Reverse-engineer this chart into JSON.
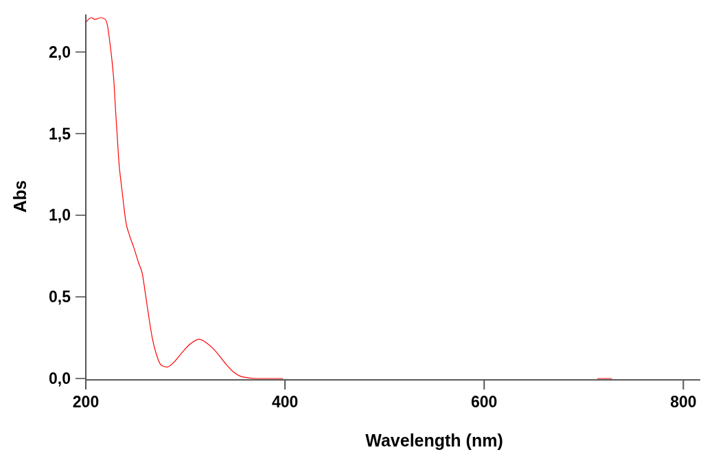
{
  "chart_data": {
    "type": "line",
    "xlabel": "Wavelength (nm)",
    "ylabel": "Abs",
    "xlim": [
      200,
      817
    ],
    "ylim": [
      0,
      2.23
    ],
    "xticks": [
      200,
      400,
      600,
      800
    ],
    "yticks": [
      {
        "value": 0,
        "label": "0,0"
      },
      {
        "value": 0.5,
        "label": "0,5"
      },
      {
        "value": 1,
        "label": "1,0"
      },
      {
        "value": 1.5,
        "label": "1,5"
      },
      {
        "value": 2,
        "label": "2,0"
      }
    ],
    "grid": false,
    "marker": "none",
    "line_style": "solid",
    "series": [
      {
        "color": "#ff0000",
        "x": [
          200,
          205.3,
          209.2,
          215,
          219.5,
          221.8,
          224.1,
          226.4,
          228.3,
          229.9,
          231.5,
          233.3,
          235.6,
          237.9,
          240.2,
          243.7,
          248.3,
          252.9,
          256.8,
          259.8,
          263.2,
          266.7,
          271.3,
          275.9,
          281.6,
          288.5,
          295.4,
          304.6,
          313.8,
          320.7,
          329.9,
          339.1,
          348.3,
          357.4,
          371.2,
          387.4,
          397.7,
          560,
          714,
          728
        ],
        "values": [
          2.18,
          2.21,
          2.2,
          2.21,
          2.2,
          2.16,
          2.06,
          1.94,
          1.81,
          1.64,
          1.49,
          1.32,
          1.19,
          1.07,
          0.96,
          0.88,
          0.8,
          0.71,
          0.64,
          0.52,
          0.38,
          0.25,
          0.14,
          0.08,
          0.07,
          0.1,
          0.15,
          0.21,
          0.24,
          0.22,
          0.17,
          0.1,
          0.04,
          0.01,
          0,
          0,
          0,
          null,
          0,
          0
        ]
      }
    ]
  }
}
